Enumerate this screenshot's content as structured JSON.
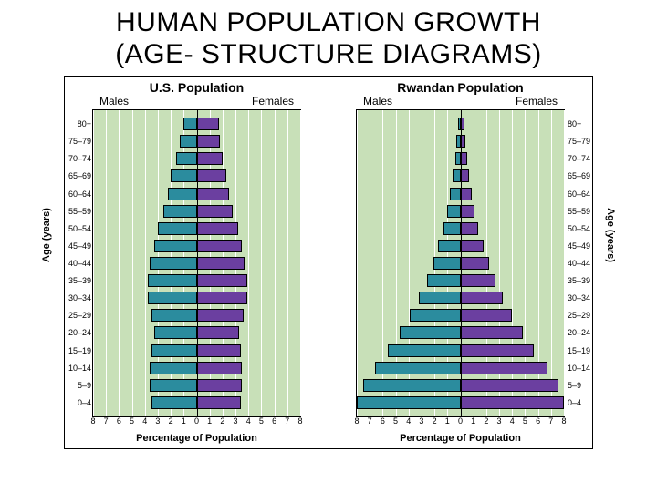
{
  "title_line1": "HUMAN POPULATION GROWTH",
  "title_line2": "(AGE- STRUCTURE DIAGRAMS)",
  "title_fontsize": 30,
  "colors": {
    "male_bar": "#2b8c9e",
    "female_bar": "#6b3fa0",
    "chart_bg": "#c8e0b8",
    "gridline": "#ffffff",
    "bar_border": "#000000",
    "page_bg": "#ffffff"
  },
  "axis": {
    "x_label": "Percentage of Population",
    "y_label": "Age (years)",
    "x_max": 8,
    "x_ticks": [
      8,
      7,
      6,
      5,
      4,
      3,
      2,
      1,
      0,
      1,
      2,
      3,
      4,
      5,
      6,
      7,
      8
    ],
    "label_fontsize": 11,
    "tick_fontsize": 9
  },
  "age_groups_top_to_bottom": [
    "80+",
    "75–79",
    "70–74",
    "65–69",
    "60–64",
    "55–59",
    "50–54",
    "45–49",
    "40–44",
    "35–39",
    "30–34",
    "25–29",
    "20–24",
    "15–19",
    "10–14",
    "5–9",
    "0–4"
  ],
  "panels": [
    {
      "title": "U.S. Population",
      "male_label": "Males",
      "female_label": "Females",
      "y_labels_side": "left",
      "y_title_side": "left",
      "male_values": [
        1.0,
        1.3,
        1.6,
        2.0,
        2.2,
        2.6,
        3.0,
        3.3,
        3.6,
        3.8,
        3.8,
        3.5,
        3.3,
        3.5,
        3.6,
        3.6,
        3.5
      ],
      "female_values": [
        1.7,
        1.8,
        2.0,
        2.3,
        2.5,
        2.8,
        3.2,
        3.5,
        3.7,
        3.9,
        3.9,
        3.6,
        3.3,
        3.4,
        3.5,
        3.5,
        3.4
      ]
    },
    {
      "title": "Rwandan Population",
      "male_label": "Males",
      "female_label": "Females",
      "y_labels_side": "right",
      "y_title_side": "right",
      "male_values": [
        0.2,
        0.3,
        0.4,
        0.6,
        0.8,
        1.0,
        1.3,
        1.7,
        2.1,
        2.6,
        3.2,
        3.9,
        4.7,
        5.6,
        6.6,
        7.5,
        8.0
      ],
      "female_values": [
        0.3,
        0.4,
        0.5,
        0.7,
        0.9,
        1.1,
        1.4,
        1.8,
        2.2,
        2.7,
        3.3,
        4.0,
        4.8,
        5.7,
        6.7,
        7.6,
        8.0
      ]
    }
  ]
}
